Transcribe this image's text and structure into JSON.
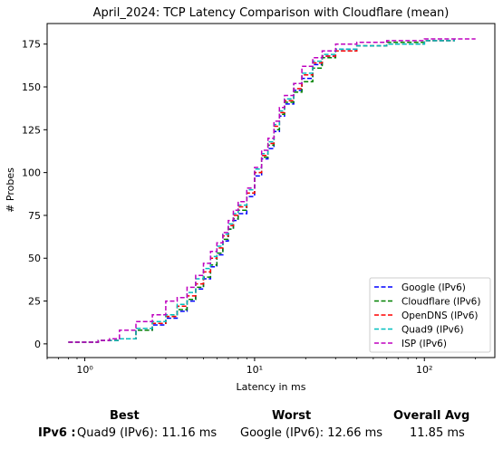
{
  "chart_data": {
    "type": "line",
    "title": "April_2024: TCP Latency Comparison with Cloudflare (mean)",
    "xlabel": "Latency in ms",
    "ylabel": "# Probes",
    "xscale": "log",
    "xlim": [
      0.6,
      260
    ],
    "ylim": [
      -8,
      187
    ],
    "x_ticks": [
      1,
      10,
      100
    ],
    "x_tick_labels": [
      "10⁰",
      "10¹",
      "10²"
    ],
    "y_ticks": [
      0,
      25,
      50,
      75,
      100,
      125,
      150,
      175
    ],
    "grid": false,
    "legend_position": "bottom-right",
    "series": [
      {
        "name": "Google (IPv6)",
        "color": "#0000ff",
        "x": [
          0.8,
          1.2,
          1.6,
          2.0,
          2.5,
          3.0,
          3.5,
          4.0,
          4.5,
          5.0,
          5.5,
          6.0,
          6.5,
          7.0,
          7.5,
          8.0,
          9.0,
          10.0,
          11.0,
          12.0,
          13.0,
          14.0,
          15.0,
          17.0,
          19.0,
          22.0,
          25.0,
          30.0,
          40.0,
          60.0,
          100.0,
          150.0
        ],
        "y": [
          1,
          2,
          3,
          8,
          11,
          15,
          19,
          25,
          32,
          38,
          45,
          52,
          60,
          67,
          72,
          76,
          86,
          98,
          108,
          114,
          124,
          133,
          140,
          148,
          155,
          163,
          168,
          172,
          174,
          175,
          177,
          178
        ]
      },
      {
        "name": "Cloudflare (IPv6)",
        "color": "#008000",
        "x": [
          0.8,
          1.2,
          1.6,
          2.0,
          2.5,
          3.0,
          3.5,
          4.0,
          4.5,
          5.0,
          5.5,
          6.0,
          6.5,
          7.0,
          7.5,
          8.0,
          9.0,
          10.0,
          11.0,
          12.0,
          13.0,
          14.0,
          15.0,
          17.0,
          19.0,
          22.0,
          25.0,
          30.0,
          40.0,
          60.0,
          100.0,
          150.0
        ],
        "y": [
          1,
          2,
          3,
          8,
          12,
          16,
          20,
          26,
          33,
          39,
          46,
          53,
          61,
          67,
          73,
          78,
          88,
          100,
          109,
          116,
          125,
          134,
          141,
          147,
          153,
          161,
          167,
          171,
          174,
          176,
          177,
          178
        ]
      },
      {
        "name": "OpenDNS (IPv6)",
        "color": "#ff0000",
        "x": [
          0.8,
          1.2,
          1.6,
          2.0,
          2.5,
          3.0,
          3.5,
          4.0,
          4.5,
          5.0,
          5.5,
          6.0,
          6.5,
          7.0,
          7.5,
          8.0,
          9.0,
          10.0,
          11.0,
          12.0,
          13.0,
          14.0,
          15.0,
          17.0,
          19.0,
          22.0,
          25.0,
          30.0,
          40.0,
          60.0,
          100.0,
          150.0
        ],
        "y": [
          1,
          2,
          3,
          9,
          12,
          16,
          22,
          28,
          35,
          42,
          50,
          56,
          63,
          69,
          75,
          80,
          88,
          100,
          110,
          117,
          127,
          135,
          142,
          149,
          157,
          164,
          168,
          171,
          174,
          175,
          177,
          178
        ]
      },
      {
        "name": "Quad9 (IPv6)",
        "color": "#00bfbf",
        "x": [
          0.8,
          1.2,
          1.6,
          2.0,
          2.5,
          3.0,
          3.5,
          4.0,
          4.5,
          5.0,
          5.5,
          6.0,
          6.5,
          7.0,
          7.5,
          8.0,
          9.0,
          10.0,
          11.0,
          12.0,
          13.0,
          14.0,
          15.0,
          17.0,
          19.0,
          22.0,
          25.0,
          30.0,
          40.0,
          60.0,
          100.0,
          150.0
        ],
        "y": [
          1,
          2,
          3,
          9,
          13,
          17,
          23,
          30,
          38,
          44,
          51,
          57,
          64,
          70,
          76,
          81,
          90,
          102,
          111,
          118,
          128,
          136,
          143,
          152,
          158,
          165,
          169,
          172,
          174,
          175,
          177,
          178
        ]
      },
      {
        "name": "ISP (IPv6)",
        "color": "#bf00bf",
        "x": [
          0.8,
          1.2,
          1.4,
          1.6,
          2.0,
          2.5,
          3.0,
          3.5,
          4.0,
          4.5,
          5.0,
          5.5,
          6.0,
          6.5,
          7.0,
          7.5,
          8.0,
          9.0,
          10.0,
          11.0,
          12.0,
          13.0,
          14.0,
          15.0,
          17.0,
          19.0,
          22.0,
          25.0,
          30.0,
          40.0,
          60.0,
          100.0,
          200.0
        ],
        "y": [
          1,
          2,
          3,
          8,
          13,
          17,
          25,
          27,
          33,
          40,
          47,
          54,
          59,
          65,
          72,
          78,
          83,
          91,
          103,
          113,
          120,
          130,
          138,
          145,
          152,
          162,
          167,
          171,
          175,
          176,
          177,
          178,
          178
        ]
      }
    ]
  },
  "summary": {
    "best_header": "Best",
    "worst_header": "Worst",
    "avg_header": "Overall Avg",
    "row_label": "IPv6 :",
    "best_value": "Quad9 (IPv6): 11.16 ms",
    "worst_value": "Google (IPv6): 12.66 ms",
    "avg_value": "11.85 ms"
  }
}
